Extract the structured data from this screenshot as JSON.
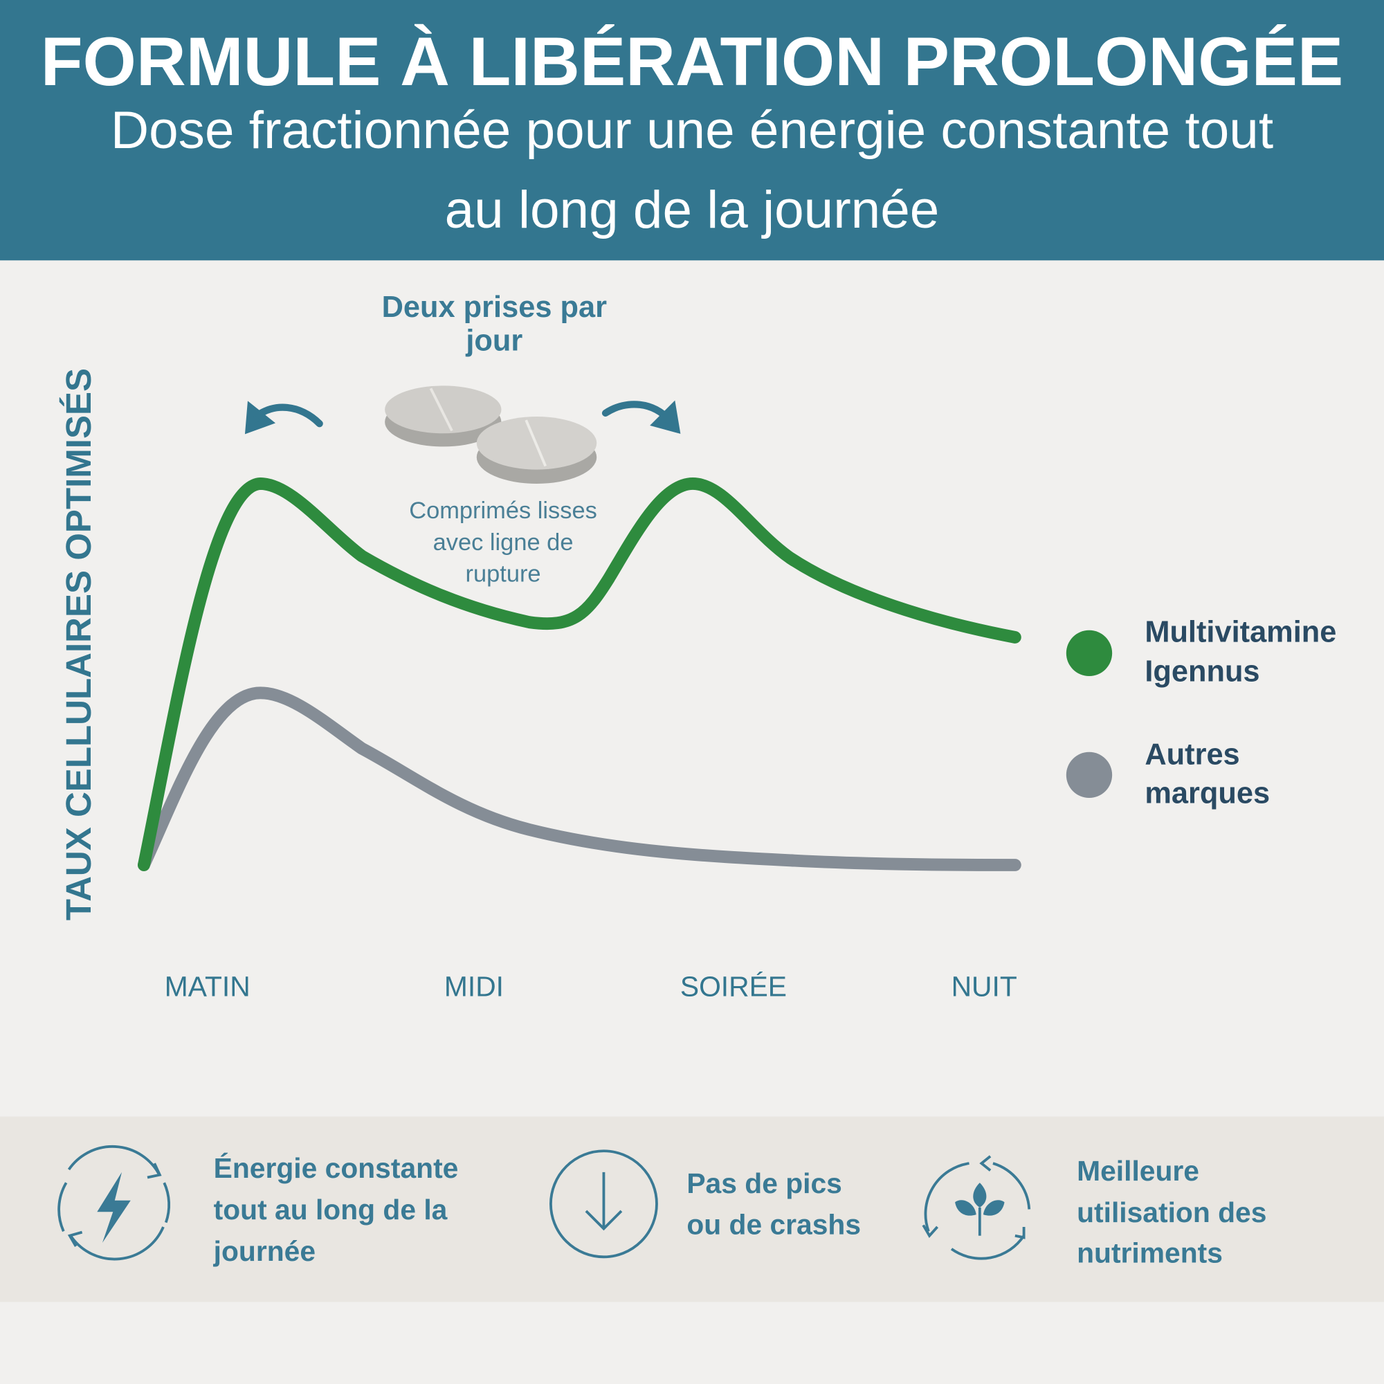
{
  "header": {
    "title": "FORMULE À LIBÉRATION PROLONGÉE",
    "subtitle": [
      "Dose fractionnée pour une énergie constante tout",
      "au long de la journée"
    ]
  },
  "chart": {
    "y_axis_label": "TAUX CELLULAIRES OPTIMISÉS",
    "x_labels": [
      "MATIN",
      "MIDI",
      "SOIRÉE",
      "NUIT"
    ],
    "dose_note": [
      "Deux prises par",
      "jour"
    ],
    "tablet_note": [
      "Comprimés lisses",
      "avec ligne de",
      "rupture"
    ],
    "legend": [
      {
        "label": [
          "Multivitamine",
          "Igennus"
        ],
        "color": "#2e8b3e"
      },
      {
        "label": [
          "Autres",
          "marques"
        ],
        "color": "#858d96"
      }
    ]
  },
  "benefits": [
    [
      "Énergie constante",
      "tout au long de la",
      "journée"
    ],
    [
      "Pas de pics",
      "ou de crashs"
    ],
    [
      "Meilleure",
      "utilisation des",
      "nutriments"
    ]
  ]
}
